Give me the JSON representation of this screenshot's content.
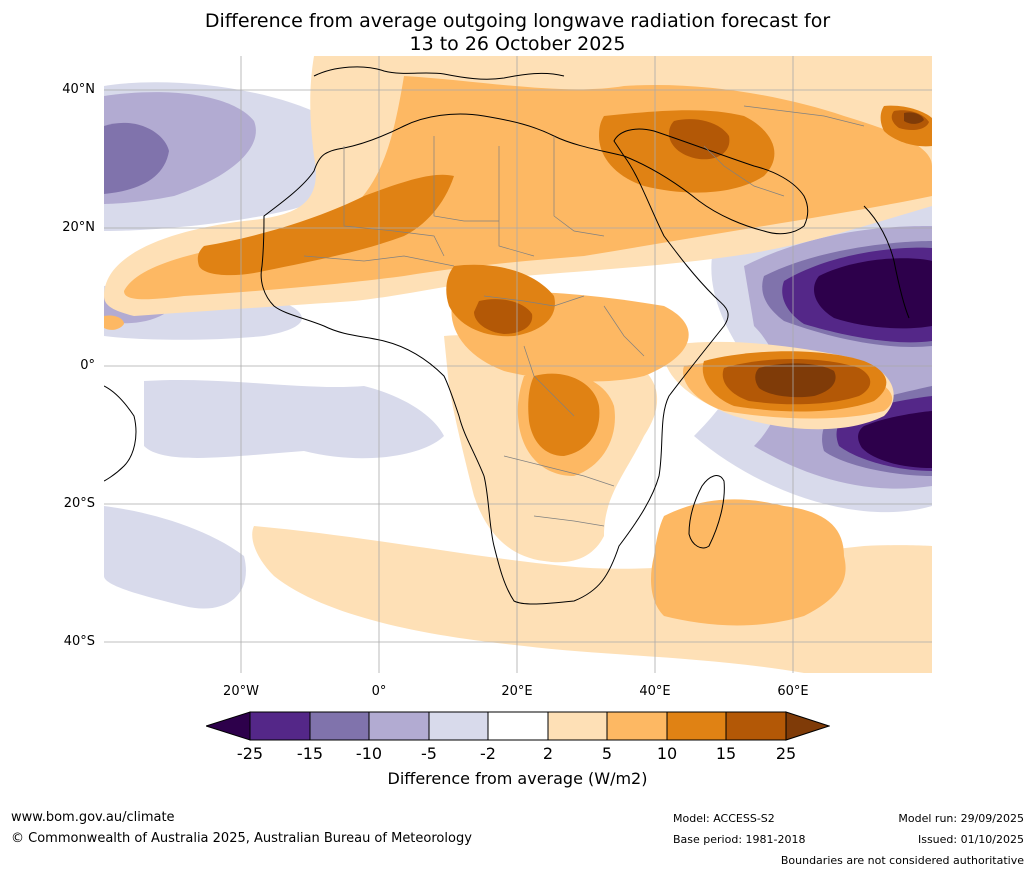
{
  "map": {
    "title_line1": "Difference from average outgoing longwave radiation forecast for",
    "title_line2": "13 to 26 October 2025",
    "lat_labels": [
      "40°N",
      "20°N",
      "0°",
      "20°S",
      "40°S"
    ],
    "lon_labels": [
      "20°W",
      "0°",
      "20°E",
      "40°E",
      "60°E"
    ],
    "region": "Africa and Indian Ocean",
    "colors": {
      "lt_minus25": "#2d004b",
      "m25_m15": "#542788",
      "m15_m10": "#8073ac",
      "m10_m5": "#b2abd2",
      "m5_m2": "#d8daeb",
      "m2_p2": "#ffffff",
      "p2_p5": "#fee0b6",
      "p5_p10": "#fdb863",
      "p10_p15": "#e08214",
      "p15_p25": "#b35806",
      "gt_p25": "#7f3b08"
    }
  },
  "legend": {
    "ticks": [
      "-25",
      "-15",
      "-10",
      "-5",
      "-2",
      "2",
      "5",
      "10",
      "15",
      "25"
    ],
    "label": "Difference from average (W/m2)"
  },
  "footer": {
    "website": "www.bom.gov.au/climate",
    "copyright": "© Commonwealth of Australia 2025, Australian Bureau of Meteorology",
    "model": "Model: ACCESS-S2",
    "base_period": "Base period: 1981-2018",
    "model_run": "Model run: 29/09/2025",
    "issued": "Issued: 01/10/2025",
    "disclaimer": "Boundaries are not considered authoritative"
  }
}
